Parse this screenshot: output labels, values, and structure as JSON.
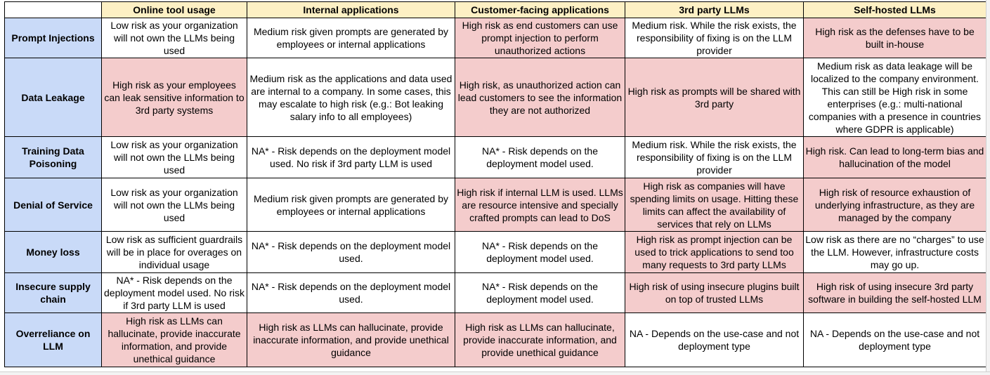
{
  "columns": [
    "Online tool usage",
    "Internal applications",
    "Customer-facing applications",
    "3rd party LLMs",
    "Self-hosted LLMs"
  ],
  "rows": [
    {
      "label": "Prompt Injections",
      "cells": [
        "Low risk as your organization will not own the LLMs being used",
        "Medium risk given prompts are generated by employees or internal applications",
        "High risk as end customers can use prompt injection to perform unauthorized actions",
        "Medium risk. While the risk exists, the responsibility of fixing is on the LLM provider",
        "High risk as the defenses have to be built in-house"
      ]
    },
    {
      "label": "Data Leakage",
      "cells": [
        "High risk as your employees can leak sensitive information to 3rd party systems",
        "Medium risk as the applications and data used are internal to a company. In some cases, this may escalate to high risk (e.g.: Bot leaking salary info to all employees)",
        "High risk, as unauthorized action can lead customers to see the information they are not authorized",
        "High risk as prompts will be shared with 3rd party",
        "Medium risk as data leakage will be localized to the company environment. This can still be High risk in some enterprises (e.g.: multi-national companies with a presence in countries where GDPR is applicable)"
      ]
    },
    {
      "label": "Training Data Poisoning",
      "cells": [
        "Low risk as your organization will not own the LLMs being used",
        "NA* - Risk depends on the deployment model used. No risk if 3rd party LLM is used",
        "NA* - Risk depends on the deployment model used.",
        "Medium risk. While the risk exists, the responsibility of fixing is on the LLM provider",
        "High risk. Can lead to long-term bias and hallucination of the model"
      ]
    },
    {
      "label": "Denial of Service",
      "cells": [
        "Low risk as your organization will not own the LLMs being used",
        "Medium risk given prompts are generated by employees or internal applications",
        "High risk if internal LLM is used. LLMs are resource intensive and specially crafted prompts can lead to DoS",
        "High risk as companies will have spending limits on usage. Hitting these limits can affect the availability of services that rely on LLMs",
        "High risk of resource exhaustion of underlying infrastructure, as they are managed by the company"
      ]
    },
    {
      "label": "Money loss",
      "cells": [
        "Low risk as sufficient guardrails will be in place for overages on individual usage",
        "NA* - Risk depends on the deployment model used.",
        "NA* - Risk depends on the deployment model used.",
        "High risk as prompt injection can be used to trick applications to send too many requests to 3rd party LLMs",
        "Low risk as there are no “charges” to use the LLM. However, infrastructure costs may go up."
      ]
    },
    {
      "label": "Insecure supply chain",
      "cells": [
        "NA* - Risk depends on the deployment model used. No risk if 3rd party LLM is used",
        "NA* - Risk depends on the deployment model used.",
        "NA* - Risk depends on the deployment model used.",
        "High risk of using insecure plugins built on top of trusted LLMs",
        "High risk of using insecure 3rd party software in building the self-hosted LLM"
      ]
    },
    {
      "label": "Overreliance on LLM",
      "cells": [
        "High risk as LLMs can hallucinate, provide inaccurate information, and provide unethical guidance",
        "High risk as LLMs can hallucinate, provide inaccurate information, and provide unethical guidance",
        "High risk as LLMs can hallucinate, provide inaccurate information, and provide unethical guidance",
        "NA - Depends on the use-case and not deployment type",
        "NA - Depends on the use-case and not deployment type"
      ]
    }
  ],
  "highlight": [
    [
      false,
      false,
      true,
      false,
      true
    ],
    [
      true,
      false,
      true,
      true,
      false
    ],
    [
      false,
      false,
      false,
      false,
      true
    ],
    [
      false,
      false,
      true,
      true,
      true
    ],
    [
      false,
      false,
      false,
      true,
      false
    ],
    [
      false,
      false,
      false,
      true,
      true
    ],
    [
      true,
      true,
      true,
      false,
      false
    ]
  ],
  "colors": {
    "header_fill": "#fdf0c4",
    "row_header_fill": "#c9daf8",
    "high_risk_fill": "#f4cccc",
    "default_fill": "#ffffff",
    "border": "#000000"
  }
}
